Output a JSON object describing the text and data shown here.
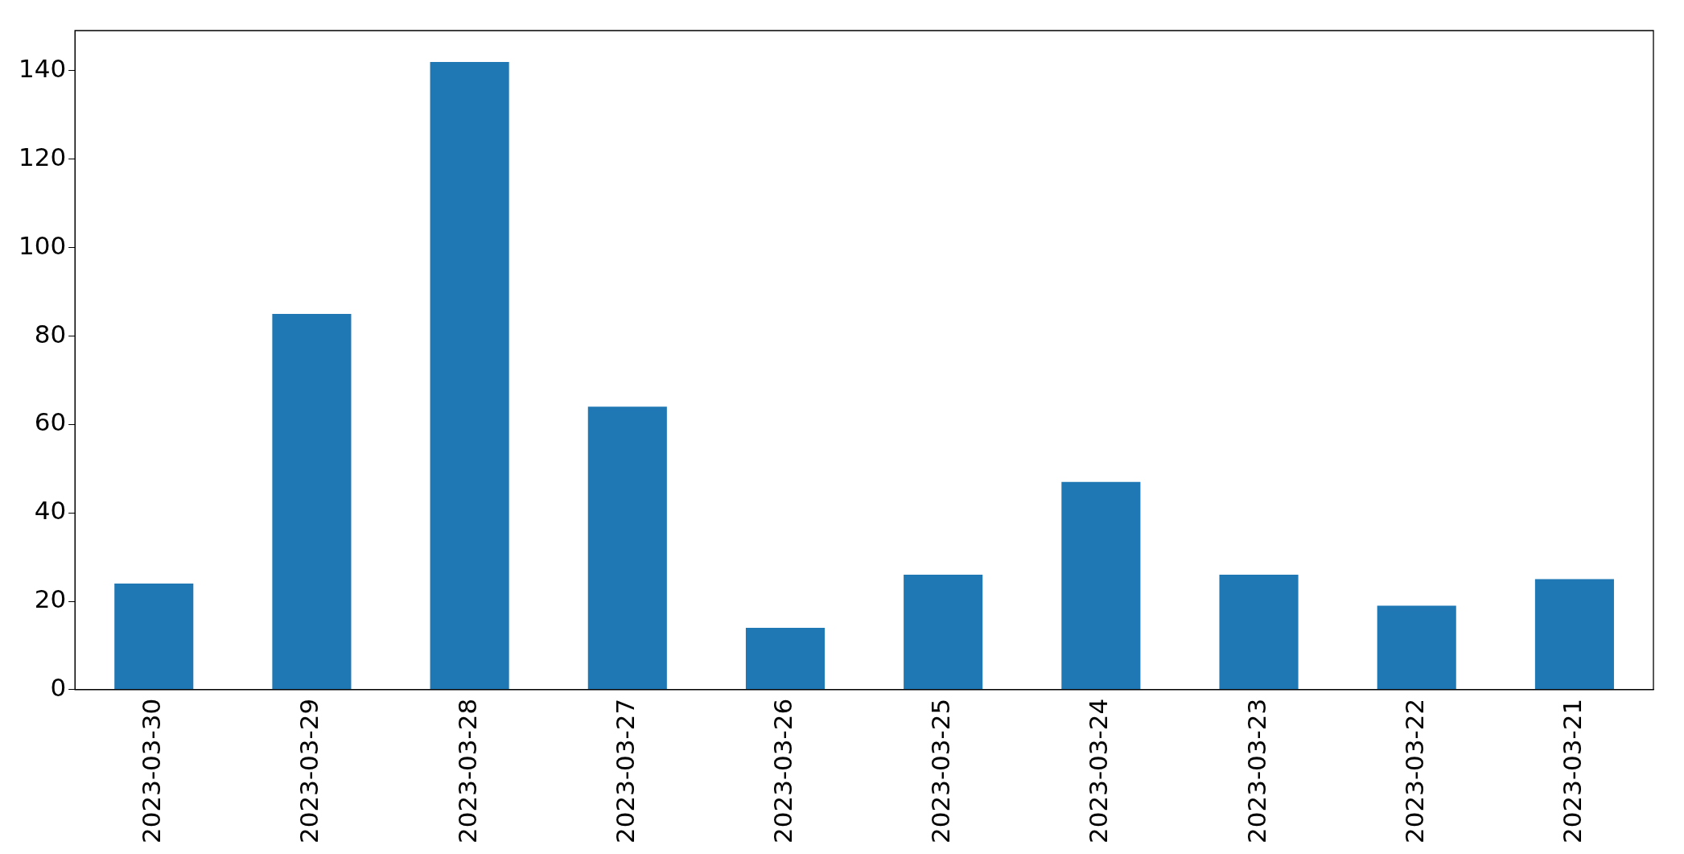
{
  "chart_data": {
    "type": "bar",
    "categories": [
      "2023-03-30",
      "2023-03-29",
      "2023-03-28",
      "2023-03-27",
      "2023-03-26",
      "2023-03-25",
      "2023-03-24",
      "2023-03-23",
      "2023-03-22",
      "2023-03-21"
    ],
    "values": [
      24,
      85,
      142,
      64,
      14,
      26,
      47,
      26,
      19,
      25
    ],
    "color": "#1f77b4",
    "ylim": [
      0,
      149.1
    ],
    "yticks": [
      0,
      20,
      40,
      60,
      80,
      100,
      120,
      140
    ],
    "grid": false,
    "legend": false
  }
}
